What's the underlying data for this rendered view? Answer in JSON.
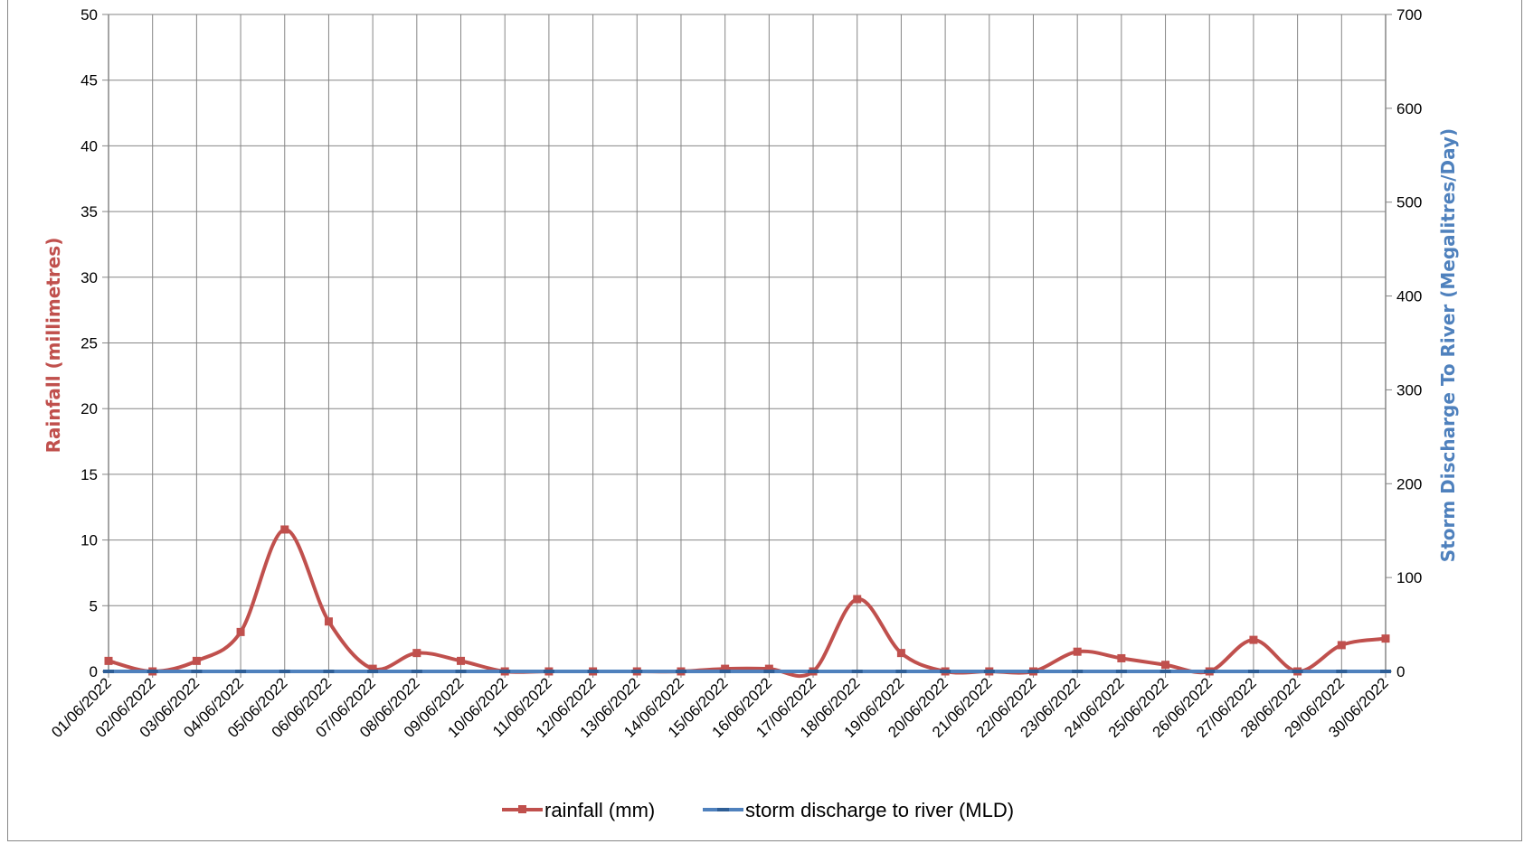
{
  "chart_data": {
    "type": "line",
    "categories": [
      "01/06/2022",
      "02/06/2022",
      "03/06/2022",
      "04/06/2022",
      "05/06/2022",
      "06/06/2022",
      "07/06/2022",
      "08/06/2022",
      "09/06/2022",
      "10/06/2022",
      "11/06/2022",
      "12/06/2022",
      "13/06/2022",
      "14/06/2022",
      "15/06/2022",
      "16/06/2022",
      "17/06/2022",
      "18/06/2022",
      "19/06/2022",
      "20/06/2022",
      "21/06/2022",
      "22/06/2022",
      "23/06/2022",
      "24/06/2022",
      "25/06/2022",
      "26/06/2022",
      "27/06/2022",
      "28/06/2022",
      "29/06/2022",
      "30/06/2022"
    ],
    "ylabel": "Rainfall (millimetres)",
    "y2label": "Storm Discharge To River (Megalitres/Day)",
    "ylim": [
      0,
      50
    ],
    "y2lim": [
      0,
      700
    ],
    "yticks": [
      "0",
      "5",
      "10",
      "15",
      "20",
      "25",
      "30",
      "35",
      "40",
      "45",
      "50"
    ],
    "y2ticks": [
      "0",
      "100",
      "200",
      "300",
      "400",
      "500",
      "600",
      "700"
    ],
    "grid": true,
    "legend_position": "bottom",
    "series": [
      {
        "name": "rainfall (mm)",
        "axis": "left",
        "color": "#C0504D",
        "marker": "square",
        "smooth": true,
        "values": [
          0.8,
          0,
          0.8,
          3,
          10.8,
          3.8,
          0.2,
          1.4,
          0.8,
          0,
          0,
          0,
          0,
          0,
          0.2,
          0.2,
          0,
          5.5,
          1.4,
          0,
          0,
          0,
          1.5,
          1,
          0.5,
          0,
          2.4,
          0,
          2,
          2.5
        ]
      },
      {
        "name": "storm discharge to river (MLD)",
        "axis": "right",
        "color": "#4F81BD",
        "marker": "dash",
        "smooth": false,
        "values": [
          0,
          0,
          0,
          0,
          0,
          0,
          0,
          0,
          0,
          0,
          0,
          0,
          0,
          0,
          0,
          0,
          0,
          0,
          0,
          0,
          0,
          0,
          0,
          0,
          0,
          0,
          0,
          0,
          0,
          0
        ]
      }
    ]
  }
}
